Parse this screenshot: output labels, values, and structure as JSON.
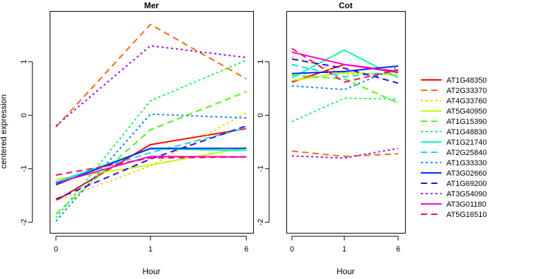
{
  "chart_data": {
    "type": "line",
    "ylabel": "centered expression",
    "ylim": [
      -2.2,
      1.95
    ],
    "yticks": [
      -2,
      -1,
      0,
      1
    ],
    "x": [
      0,
      1,
      6
    ],
    "xtick_labels": [
      "0",
      "1",
      "6"
    ],
    "panels": [
      {
        "title": "Mer",
        "xlabel": "Hour",
        "series": [
          {
            "name": "AT1G48350",
            "color": "#FF0000",
            "dash": "solid",
            "values": [
              -1.6,
              -0.55,
              -0.25
            ]
          },
          {
            "name": "AT2G33370",
            "color": "#FF6600",
            "dash": "long",
            "values": [
              -0.22,
              1.7,
              0.68
            ]
          },
          {
            "name": "AT4G33760",
            "color": "#FFCC00",
            "dash": "dot",
            "values": [
              -1.6,
              -0.95,
              0.05
            ]
          },
          {
            "name": "AT5G40950",
            "color": "#BBFF00",
            "dash": "solid",
            "values": [
              -1.2,
              -0.93,
              -0.6
            ]
          },
          {
            "name": "AT1G15390",
            "color": "#44FF00",
            "dash": "long",
            "values": [
              -1.85,
              -0.27,
              0.44
            ]
          },
          {
            "name": "AT1G48830",
            "color": "#00FF44",
            "dash": "dot",
            "values": [
              -1.92,
              0.27,
              1.03
            ]
          },
          {
            "name": "AT1G21740",
            "color": "#00FFAA",
            "dash": "solid",
            "values": [
              -1.25,
              -0.63,
              -0.66
            ]
          },
          {
            "name": "AT2G25840",
            "color": "#00DDFF",
            "dash": "long",
            "values": [
              -1.25,
              -0.7,
              -0.24
            ]
          },
          {
            "name": "AT1G33330",
            "color": "#0088FF",
            "dash": "dot",
            "values": [
              -1.98,
              0.02,
              -0.05
            ]
          },
          {
            "name": "AT3G02660",
            "color": "#0022FF",
            "dash": "solid",
            "values": [
              -1.3,
              -0.62,
              -0.62
            ]
          },
          {
            "name": "AT1G69200",
            "color": "#3300FF",
            "dash": "long",
            "values": [
              -1.57,
              -0.82,
              -0.2
            ]
          },
          {
            "name": "AT3G54090",
            "color": "#AA00FF",
            "dash": "dot",
            "values": [
              -0.2,
              1.3,
              1.08
            ]
          },
          {
            "name": "AT3G01180",
            "color": "#FF00CC",
            "dash": "solid",
            "values": [
              -1.27,
              -0.77,
              -0.78
            ]
          },
          {
            "name": "AT5G16510",
            "color": "#FF0066",
            "dash": "long",
            "values": [
              -1.12,
              -0.8,
              -0.78
            ]
          }
        ]
      },
      {
        "title": "Cot",
        "xlabel": "Hour",
        "series": [
          {
            "name": "AT1G48350",
            "color": "#FF0000",
            "dash": "solid",
            "values": [
              0.62,
              0.95,
              0.82
            ]
          },
          {
            "name": "AT2G33370",
            "color": "#FF6600",
            "dash": "long",
            "values": [
              -0.67,
              -0.77,
              -0.72
            ]
          },
          {
            "name": "AT4G33760",
            "color": "#FFCC00",
            "dash": "dot",
            "values": [
              1.1,
              0.77,
              0.78
            ]
          },
          {
            "name": "AT5G40950",
            "color": "#BBFF00",
            "dash": "solid",
            "values": [
              0.65,
              0.8,
              0.75
            ]
          },
          {
            "name": "AT1G15390",
            "color": "#44FF00",
            "dash": "long",
            "values": [
              0.75,
              0.68,
              0.23
            ]
          },
          {
            "name": "AT1G48830",
            "color": "#00FF44",
            "dash": "dot",
            "values": [
              -0.12,
              0.32,
              0.3
            ]
          },
          {
            "name": "AT1G21740",
            "color": "#00FFAA",
            "dash": "solid",
            "values": [
              0.7,
              1.22,
              0.7
            ]
          },
          {
            "name": "AT2G25840",
            "color": "#00DDFF",
            "dash": "long",
            "values": [
              0.95,
              0.72,
              0.82
            ]
          },
          {
            "name": "AT1G33330",
            "color": "#0088FF",
            "dash": "dot",
            "values": [
              0.55,
              0.48,
              0.9
            ]
          },
          {
            "name": "AT3G02660",
            "color": "#0022FF",
            "dash": "solid",
            "values": [
              0.78,
              0.82,
              0.92
            ]
          },
          {
            "name": "AT1G69200",
            "color": "#3300FF",
            "dash": "long",
            "values": [
              1.05,
              0.88,
              0.6
            ]
          },
          {
            "name": "AT3G54090",
            "color": "#AA00FF",
            "dash": "dot",
            "values": [
              -0.76,
              -0.8,
              -0.62
            ]
          },
          {
            "name": "AT3G01180",
            "color": "#FF00CC",
            "dash": "solid",
            "values": [
              1.18,
              0.95,
              0.8
            ]
          },
          {
            "name": "AT5G16510",
            "color": "#FF0066",
            "dash": "long",
            "values": [
              1.25,
              0.62,
              0.85
            ]
          }
        ]
      }
    ],
    "legend": {
      "placement": "right",
      "entries": [
        {
          "name": "AT1G48350",
          "color": "#FF0000",
          "dash": "solid"
        },
        {
          "name": "AT2G33370",
          "color": "#FF6600",
          "dash": "long"
        },
        {
          "name": "AT4G33760",
          "color": "#FFCC00",
          "dash": "dot"
        },
        {
          "name": "AT5G40950",
          "color": "#BBFF00",
          "dash": "solid"
        },
        {
          "name": "AT1G15390",
          "color": "#44FF00",
          "dash": "long"
        },
        {
          "name": "AT1G48830",
          "color": "#00FF44",
          "dash": "dot"
        },
        {
          "name": "AT1G21740",
          "color": "#00FFAA",
          "dash": "solid"
        },
        {
          "name": "AT2G25840",
          "color": "#00DDFF",
          "dash": "long"
        },
        {
          "name": "AT1G33330",
          "color": "#0088FF",
          "dash": "dot"
        },
        {
          "name": "AT3G02660",
          "color": "#0022FF",
          "dash": "solid"
        },
        {
          "name": "AT1G69200",
          "color": "#3300FF",
          "dash": "long"
        },
        {
          "name": "AT3G54090",
          "color": "#AA00FF",
          "dash": "dot"
        },
        {
          "name": "AT3G01180",
          "color": "#FF00CC",
          "dash": "solid"
        },
        {
          "name": "AT5G16510",
          "color": "#FF0066",
          "dash": "long"
        }
      ]
    },
    "grid": false
  }
}
